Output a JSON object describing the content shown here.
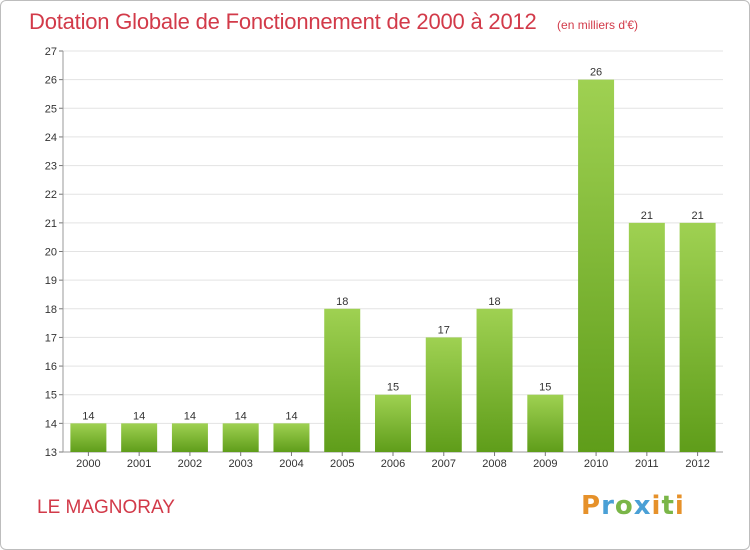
{
  "header": {
    "title": "Dotation Globale de Fonctionnement de 2000 à 2012",
    "subtitle": "(en milliers d'€)"
  },
  "commune": "LE MAGNORAY",
  "logo": "Proxiti",
  "colors": {
    "bar_top": "#9fd152",
    "bar_bottom": "#5f9d1a",
    "title": "#d23a49",
    "grid": "#e3e3e3"
  },
  "chart_data": {
    "type": "bar",
    "categories": [
      "2000",
      "2001",
      "2002",
      "2003",
      "2004",
      "2005",
      "2006",
      "2007",
      "2008",
      "2009",
      "2010",
      "2011",
      "2012"
    ],
    "values": [
      14,
      14,
      14,
      14,
      14,
      18,
      15,
      17,
      18,
      15,
      26,
      21,
      21
    ],
    "title": "Dotation Globale de Fonctionnement de 2000 à 2012",
    "ylim": [
      13,
      27
    ],
    "yticks": [
      13,
      14,
      15,
      16,
      17,
      18,
      19,
      20,
      21,
      22,
      23,
      24,
      25,
      26,
      27
    ],
    "grid": true,
    "legend": "none"
  }
}
